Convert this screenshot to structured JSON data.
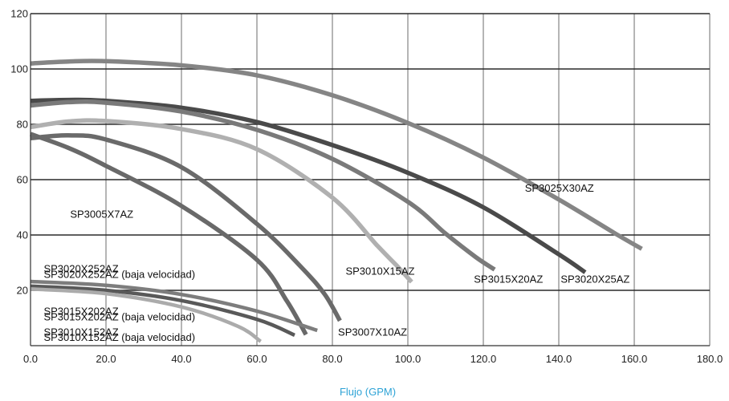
{
  "chart_data": {
    "type": "line",
    "title": "",
    "xlabel": "Flujo (GPM)",
    "ylabel": "",
    "xlim": [
      0,
      180
    ],
    "ylim": [
      0,
      120
    ],
    "x_ticks": [
      "0.0",
      "20.0",
      "40.0",
      "60.0",
      "80.0",
      "100.0",
      "120.0",
      "140.0",
      "160.0",
      "180.0"
    ],
    "y_ticks": [
      "20",
      "40",
      "60",
      "80",
      "100",
      "120"
    ],
    "grid": true,
    "legend": "none",
    "series": [
      {
        "name": "SP3025X30AZ",
        "color": "#858585",
        "points": [
          [
            0,
            102
          ],
          [
            10,
            102.7
          ],
          [
            20,
            102.8
          ],
          [
            40,
            101.3
          ],
          [
            60,
            97.7
          ],
          [
            80,
            90.5
          ],
          [
            100,
            80.5
          ],
          [
            120,
            68
          ],
          [
            140,
            52.8
          ],
          [
            155,
            40.5
          ],
          [
            162,
            35
          ]
        ]
      },
      {
        "name": "SP3020X25AZ",
        "color": "#4a4a4a",
        "points": [
          [
            0,
            88.5
          ],
          [
            10,
            88.8
          ],
          [
            20,
            88.5
          ],
          [
            40,
            86
          ],
          [
            60,
            80.8
          ],
          [
            80,
            72.5
          ],
          [
            100,
            62.5
          ],
          [
            120,
            50
          ],
          [
            140,
            33
          ],
          [
            147,
            26.5
          ]
        ]
      },
      {
        "name": "SP3015X20AZ",
        "color": "#7a7a7a",
        "points": [
          [
            0,
            86.8
          ],
          [
            10,
            88
          ],
          [
            20,
            87.8
          ],
          [
            40,
            84.6
          ],
          [
            60,
            78
          ],
          [
            80,
            67.5
          ],
          [
            100,
            52
          ],
          [
            110,
            40.5
          ],
          [
            118,
            32
          ],
          [
            123,
            27.5
          ]
        ]
      },
      {
        "name": "SP3010X15AZ",
        "color": "#b0b0b0",
        "points": [
          [
            0,
            79
          ],
          [
            10,
            81
          ],
          [
            20,
            81.2
          ],
          [
            40,
            78.3
          ],
          [
            60,
            71
          ],
          [
            80,
            53.5
          ],
          [
            92,
            36
          ],
          [
            97,
            29
          ],
          [
            101,
            23
          ]
        ]
      },
      {
        "name": "SP3007X10AZ",
        "color": "#6a6a6a",
        "points": [
          [
            0,
            75
          ],
          [
            10,
            76
          ],
          [
            20,
            74.5
          ],
          [
            40,
            64.5
          ],
          [
            60,
            44
          ],
          [
            72,
            28
          ],
          [
            78,
            18.5
          ],
          [
            82,
            9
          ]
        ]
      },
      {
        "name": "SP3005X7AZ",
        "color": "#696969",
        "points": [
          [
            0,
            76.5
          ],
          [
            10,
            71.5
          ],
          [
            20,
            65
          ],
          [
            40,
            50.5
          ],
          [
            60,
            31
          ],
          [
            68,
            16
          ],
          [
            73,
            4
          ]
        ]
      },
      {
        "name": "SP3020X252AZ (baja velocidad)",
        "color": "#7d7d7d",
        "points": [
          [
            0,
            23.2
          ],
          [
            20,
            21.8
          ],
          [
            40,
            18.5
          ],
          [
            60,
            12.5
          ],
          [
            76,
            5.5
          ]
        ]
      },
      {
        "name": "SP3015X202AZ (baja velocidad)",
        "color": "#595959",
        "points": [
          [
            0,
            21.5
          ],
          [
            20,
            20
          ],
          [
            40,
            16.3
          ],
          [
            60,
            9.5
          ],
          [
            70,
            3.8
          ]
        ]
      },
      {
        "name": "SP3010X152AZ (baja velocidad)",
        "color": "#ababab",
        "points": [
          [
            0,
            20.5
          ],
          [
            20,
            18.8
          ],
          [
            40,
            14
          ],
          [
            55,
            7
          ],
          [
            61,
            1.5
          ]
        ]
      }
    ],
    "annotations": [
      {
        "text": "SP3025X30AZ",
        "x": 131,
        "y": 57
      },
      {
        "text": "SP3005X7AZ",
        "x": 10.5,
        "y": 47.5
      },
      {
        "text": "SP3010X15AZ",
        "x": 83.5,
        "y": 27
      },
      {
        "text": "SP3015X20AZ",
        "x": 117.5,
        "y": 24
      },
      {
        "text": "SP3020X25AZ",
        "x": 140.5,
        "y": 24
      },
      {
        "text": "SP3007X10AZ",
        "x": 81.5,
        "y": 5
      },
      {
        "text": "SP3020X252AZ",
        "x": 3.5,
        "y": 27.8
      },
      {
        "text": "SP3020X252AZ (baja velocidad)",
        "x": 3.5,
        "y": 25.8
      },
      {
        "text": "SP3015X202AZ",
        "x": 3.5,
        "y": 12.5
      },
      {
        "text": "SP3015X202AZ (baja velocidad)",
        "x": 3.5,
        "y": 10.5
      },
      {
        "text": "SP3010X152AZ",
        "x": 3.5,
        "y": 5
      },
      {
        "text": "SP3010X152AZ (baja velocidad)",
        "x": 3.5,
        "y": 3
      }
    ]
  }
}
